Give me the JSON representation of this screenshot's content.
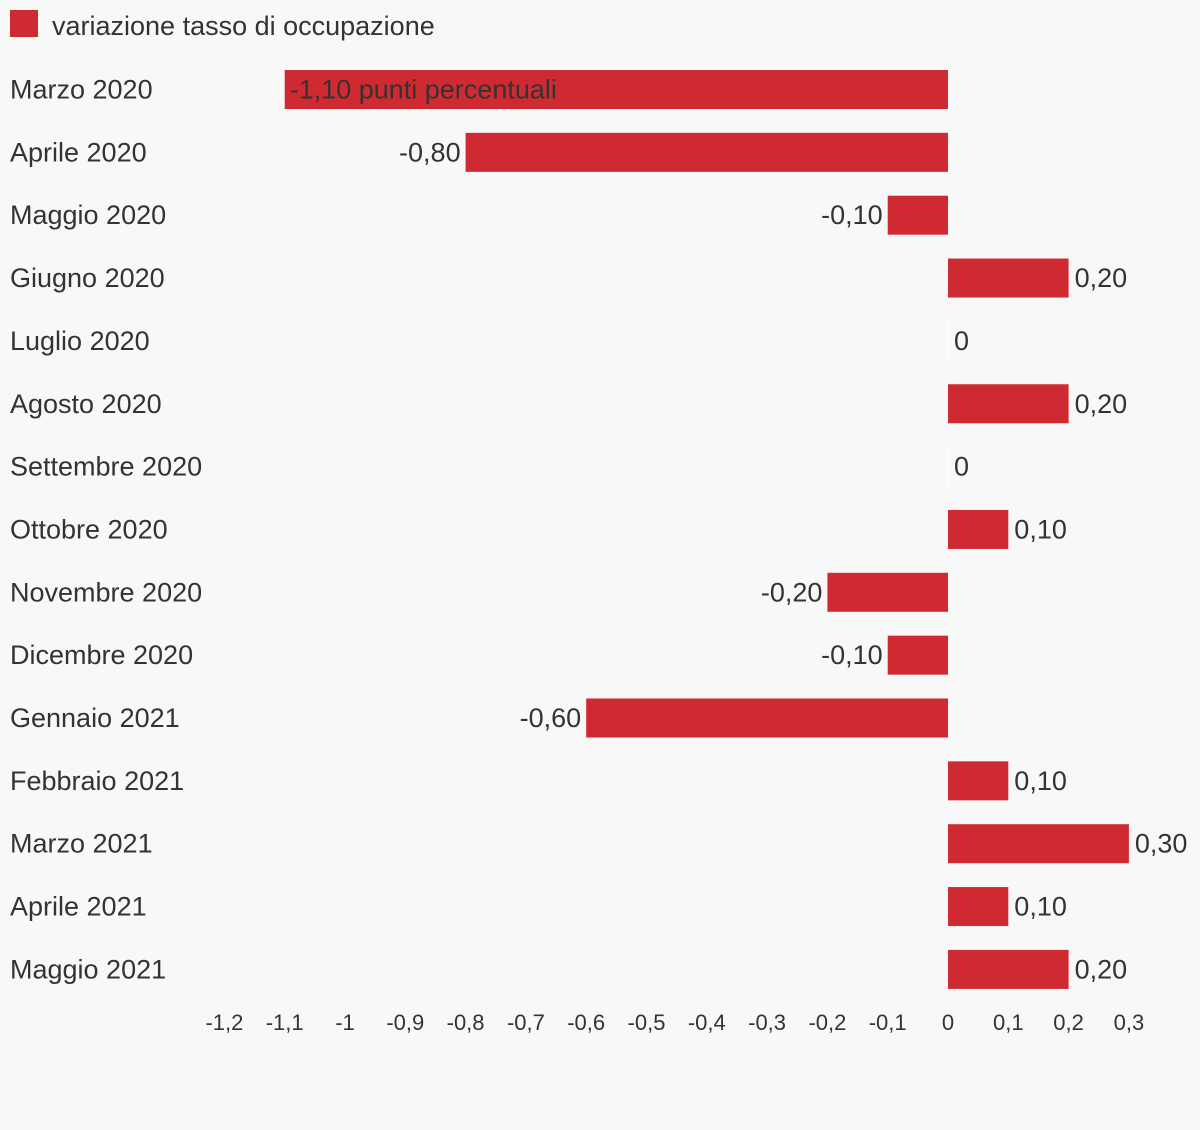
{
  "chart_data": {
    "type": "bar",
    "orientation": "horizontal",
    "title": "",
    "xlabel": "",
    "ylabel": "",
    "legend": {
      "position": "top-left",
      "entries": [
        "variazione tasso di occupazione"
      ]
    },
    "series": [
      {
        "name": "variazione tasso di occupazione",
        "color": "#cf2a31",
        "values": [
          -1.1,
          -0.8,
          -0.1,
          0.2,
          0,
          0.2,
          0,
          0.1,
          -0.2,
          -0.1,
          -0.6,
          0.1,
          0.3,
          0.1,
          0.2
        ],
        "labels": [
          "-1,10 punti percentuali",
          "-0,80",
          "-0,10",
          "0,20",
          "0",
          "0,20",
          "0",
          "0,10",
          "-0,20",
          "-0,10",
          "-0,60",
          "0,10",
          "0,30",
          "0,10",
          "0,20"
        ]
      }
    ],
    "categories": [
      "Marzo 2020",
      "Aprile 2020",
      "Maggio 2020",
      "Giugno 2020",
      "Luglio 2020",
      "Agosto 2020",
      "Settembre 2020",
      "Ottobre 2020",
      "Novembre 2020",
      "Dicembre 2020",
      "Gennaio 2021",
      "Febbraio 2021",
      "Marzo 2021",
      "Aprile 2021",
      "Maggio 2021"
    ],
    "xlim": [
      -1.2,
      0.3
    ],
    "xticks": [
      -1.2,
      -1.1,
      -1,
      -0.9,
      -0.8,
      -0.7,
      -0.6,
      -0.5,
      -0.4,
      -0.3,
      -0.2,
      -0.1,
      0,
      0.1,
      0.2,
      0.3
    ],
    "xtick_labels": [
      "-1,2",
      "-1,1",
      "-1",
      "-0,9",
      "-0,8",
      "-0,7",
      "-0,6",
      "-0,5",
      "-0,4",
      "-0,3",
      "-0,2",
      "-0,1",
      "0",
      "0,1",
      "0,2",
      "0,3"
    ],
    "grid": false
  }
}
